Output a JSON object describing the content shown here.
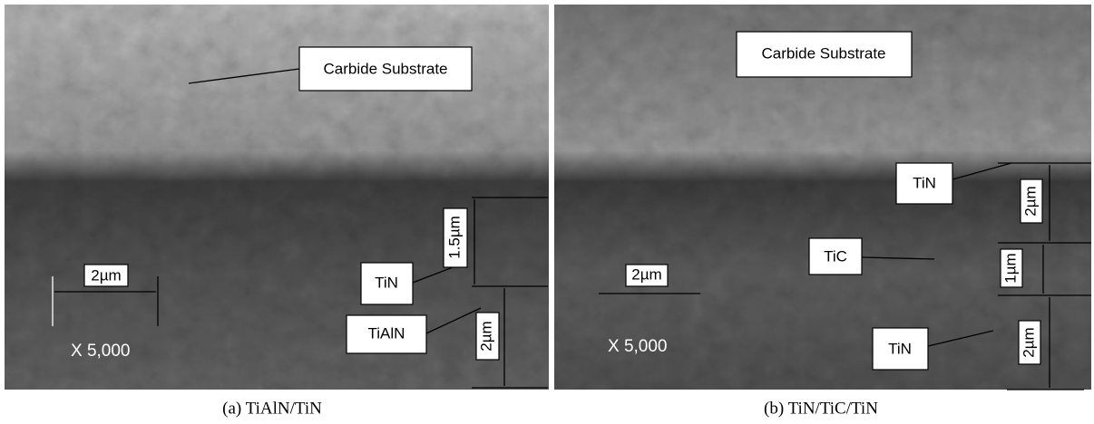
{
  "panels": [
    {
      "caption": "(a) TiAlN/TiN",
      "magnification": "X 5,000",
      "scale_bar": "2µm",
      "labels": [
        "Carbide Substrate",
        "TiN",
        "TiAlN"
      ],
      "thickness": [
        "1.5µm",
        "2µm"
      ]
    },
    {
      "caption": "(b) TiN/TiC/TiN",
      "magnification": "X 5,000",
      "scale_bar": "2µm",
      "labels": [
        "Carbide Substrate",
        "TiN",
        "TiC",
        "TiN"
      ],
      "thickness": [
        "2µm",
        "1µm",
        "2µm"
      ]
    }
  ]
}
